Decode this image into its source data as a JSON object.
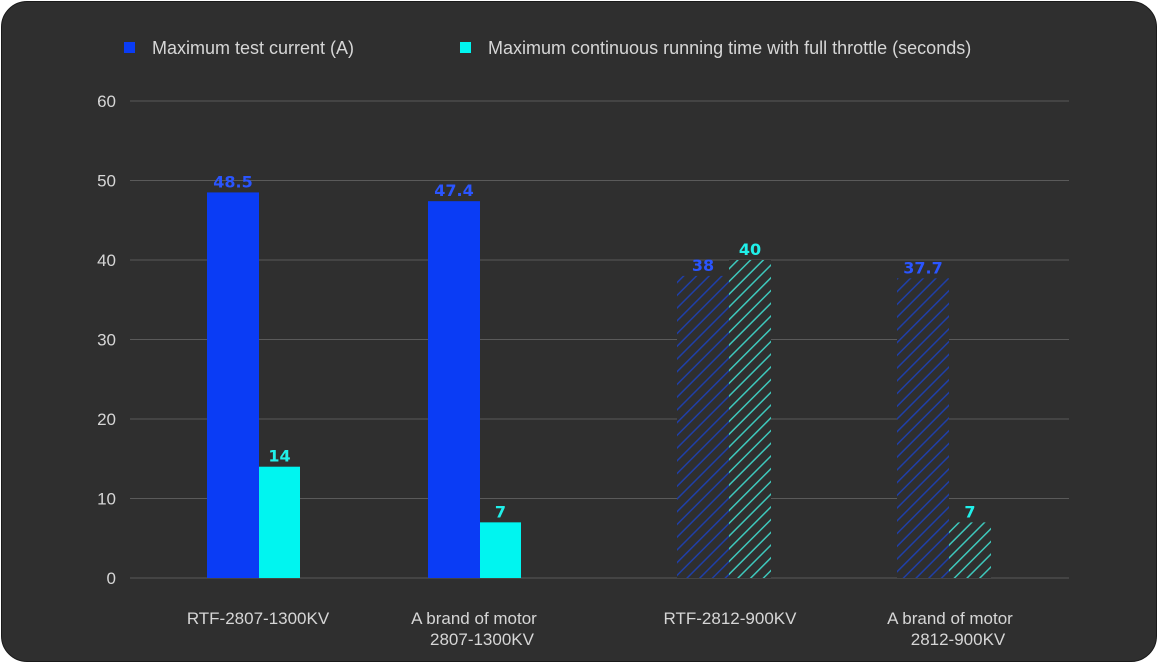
{
  "chart_data": {
    "type": "bar",
    "categories": [
      [
        "RTF-2807-1300KV"
      ],
      [
        "A brand of motor",
        "2807-1300KV"
      ],
      [
        "RTF-2812-900KV"
      ],
      [
        "A brand of motor",
        "2812-900KV"
      ]
    ],
    "series": [
      {
        "name": "Maximum test current (A)",
        "values": [
          48.5,
          47.4,
          38,
          37.7
        ],
        "color": "#0a3cf5"
      },
      {
        "name": "Maximum continuous running time with full throttle (seconds)",
        "values": [
          14,
          7,
          40,
          7
        ],
        "color": "#00f5f0"
      }
    ],
    "value_labels": [
      [
        "48.5",
        "47.4",
        "38",
        "37.7"
      ],
      [
        "14",
        "7",
        "40",
        "7"
      ]
    ],
    "hatched_categories": [
      2,
      3
    ],
    "ylim": [
      0,
      60
    ],
    "yticks": [
      0,
      10,
      20,
      30,
      40,
      50,
      60
    ],
    "grid": true,
    "legend_position": "top"
  }
}
